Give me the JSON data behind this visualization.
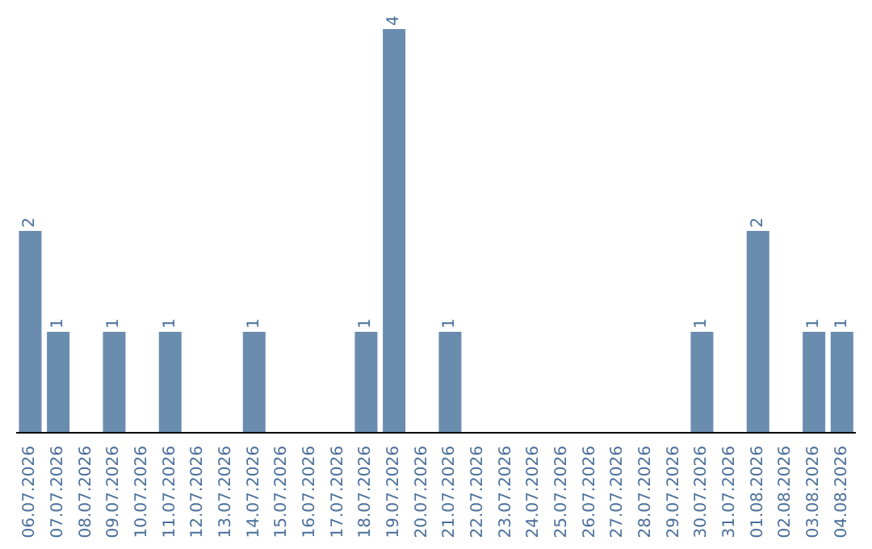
{
  "chart_data": {
    "type": "bar",
    "categories": [
      "06.07.2026",
      "07.07.2026",
      "08.07.2026",
      "09.07.2026",
      "10.07.2026",
      "11.07.2026",
      "12.07.2026",
      "13.07.2026",
      "14.07.2026",
      "15.07.2026",
      "16.07.2026",
      "17.07.2026",
      "18.07.2026",
      "19.07.2026",
      "20.07.2026",
      "21.07.2026",
      "22.07.2026",
      "23.07.2026",
      "24.07.2026",
      "25.07.2026",
      "26.07.2026",
      "27.07.2026",
      "28.07.2026",
      "29.07.2026",
      "30.07.2026",
      "31.07.2026",
      "01.08.2026",
      "02.08.2026",
      "03.08.2026",
      "04.08.2026"
    ],
    "values": [
      2,
      1,
      0,
      1,
      0,
      1,
      0,
      0,
      1,
      0,
      0,
      0,
      1,
      4,
      0,
      1,
      0,
      0,
      0,
      0,
      0,
      0,
      0,
      0,
      1,
      0,
      2,
      0,
      1,
      1
    ],
    "value_labels": [
      "2",
      "1",
      null,
      "1",
      null,
      "1",
      null,
      null,
      "1",
      null,
      null,
      null,
      "1",
      "4",
      null,
      "1",
      null,
      null,
      null,
      null,
      null,
      null,
      null,
      null,
      "1",
      null,
      "2",
      null,
      "1",
      "1"
    ],
    "color": "#6a8caf",
    "tick_labels": "x",
    "grid": false,
    "legend": false
  }
}
